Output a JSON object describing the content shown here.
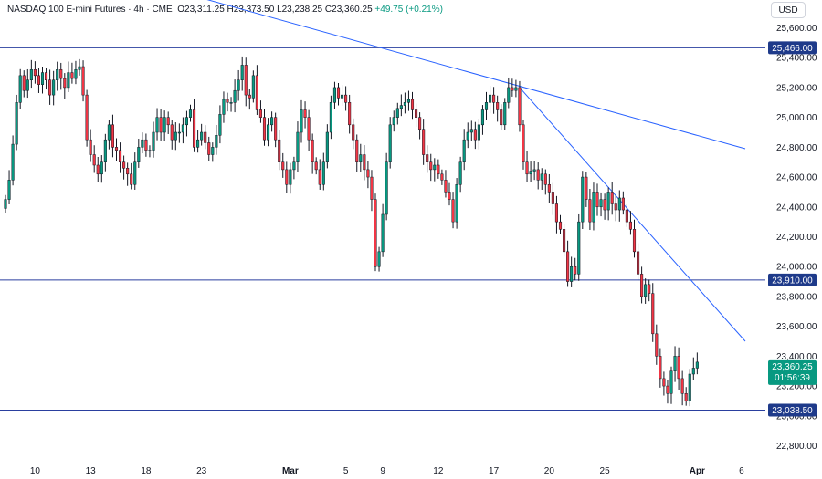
{
  "header": {
    "symbol_name": "NASDAQ 100 E-mini Futures",
    "interval": "4h",
    "exchange": "CME",
    "open_label": "O",
    "open": "23,311.25",
    "high_label": "H",
    "high": "23,373.50",
    "low_label": "L",
    "low": "23,238.25",
    "close_label": "C",
    "close": "23,360.25",
    "change": "+49.75 (+0.21%)",
    "separator": "·"
  },
  "currency": "USD",
  "colors": {
    "up": "#089981",
    "down": "#f23645",
    "candle_outline": "#131722",
    "trendline": "#2962ff",
    "level_line": "#2a3f9f",
    "level_label_bg": "#1e3a8a",
    "last_price_bg": "#089981"
  },
  "chart_data": {
    "type": "candlestick",
    "title": "NASDAQ 100 E-mini Futures · 4h · CME",
    "ylim": [
      22700,
      25750
    ],
    "y_ticks": [
      "25,600.00",
      "25,400.00",
      "25,200.00",
      "25,000.00",
      "24,800.00",
      "24,600.00",
      "24,400.00",
      "24,200.00",
      "24,000.00",
      "23,800.00",
      "23,600.00",
      "23,400.00",
      "23,200.00",
      "23,000.00",
      "22,800.00"
    ],
    "y_tick_values": [
      25600,
      25400,
      25200,
      25000,
      24800,
      24600,
      24400,
      24200,
      24000,
      23800,
      23600,
      23400,
      23200,
      23000,
      22800
    ],
    "x_ticks": [
      {
        "label": "10",
        "bar": 8,
        "bold": false
      },
      {
        "label": "13",
        "bar": 23,
        "bold": false
      },
      {
        "label": "18",
        "bar": 38,
        "bold": false
      },
      {
        "label": "23",
        "bar": 53,
        "bold": false
      },
      {
        "label": "Mar",
        "bar": 77,
        "bold": true
      },
      {
        "label": "5",
        "bar": 92,
        "bold": false
      },
      {
        "label": "9",
        "bar": 102,
        "bold": false
      },
      {
        "label": "12",
        "bar": 117,
        "bold": false
      },
      {
        "label": "17",
        "bar": 132,
        "bold": false
      },
      {
        "label": "20",
        "bar": 147,
        "bold": false
      },
      {
        "label": "25",
        "bar": 162,
        "bold": false
      },
      {
        "label": "Apr",
        "bar": 187,
        "bold": true
      },
      {
        "label": "6",
        "bar": 199,
        "bold": false
      }
    ],
    "horizontal_levels": [
      {
        "label": "25,466.00",
        "value": 25466
      },
      {
        "label": "23,910.00",
        "value": 23910
      },
      {
        "label": "23,038.50",
        "value": 23038.5
      }
    ],
    "trendlines": [
      {
        "from": {
          "bar": 50,
          "value": 25820
        },
        "to": {
          "bar": 200,
          "value": 24790
        }
      },
      {
        "from": {
          "bar": 139,
          "value": 25200
        },
        "to": {
          "bar": 200,
          "value": 23500
        }
      }
    ],
    "last_price": {
      "value": 23360.25,
      "label": "23,360.25",
      "countdown": "01:56:39"
    },
    "closes": [
      24450,
      24580,
      24820,
      25100,
      25280,
      25180,
      25250,
      25320,
      25280,
      25220,
      25300,
      25250,
      25150,
      25250,
      25320,
      25260,
      25200,
      25300,
      25260,
      25320,
      25340,
      25150,
      24850,
      24750,
      24680,
      24620,
      24700,
      24850,
      24950,
      24800,
      24780,
      24700,
      24660,
      24620,
      24550,
      24700,
      24800,
      24850,
      24780,
      24780,
      24900,
      25000,
      24900,
      25000,
      24950,
      24850,
      24900,
      24900,
      24950,
      25000,
      25050,
      24800,
      24850,
      24900,
      24830,
      24750,
      24800,
      24880,
      25020,
      25120,
      25100,
      25100,
      25180,
      25250,
      25350,
      25150,
      25130,
      25280,
      25050,
      25000,
      24850,
      24950,
      25000,
      24850,
      24700,
      24650,
      24550,
      24650,
      24700,
      24900,
      25050,
      25000,
      24850,
      24700,
      24650,
      24550,
      24700,
      24900,
      25100,
      25200,
      25130,
      25150,
      25100,
      24950,
      24850,
      24700,
      24750,
      24650,
      24600,
      24450,
      24000,
      24100,
      24350,
      24700,
      24950,
      25000,
      25060,
      25080,
      25100,
      25120,
      25050,
      25000,
      24920,
      24750,
      24700,
      24650,
      24680,
      24620,
      24580,
      24500,
      24450,
      24300,
      24550,
      24700,
      24850,
      24900,
      24920,
      24850,
      24950,
      25050,
      25100,
      25150,
      25100,
      25050,
      24950,
      25100,
      25200,
      25180,
      25200,
      24950,
      24700,
      24620,
      24640,
      24650,
      24580,
      24620,
      24550,
      24500,
      24420,
      24300,
      24250,
      24100,
      23900,
      24000,
      23950,
      24300,
      24600,
      24450,
      24300,
      24500,
      24400,
      24450,
      24380,
      24500,
      24420,
      24380,
      24460,
      24380,
      24300,
      24250,
      24100,
      23950,
      23800,
      23880,
      23820,
      23550,
      23400,
      23250,
      23200,
      23150,
      23300,
      23400,
      23250,
      23150,
      23100,
      23280,
      23320,
      23360.25
    ]
  }
}
